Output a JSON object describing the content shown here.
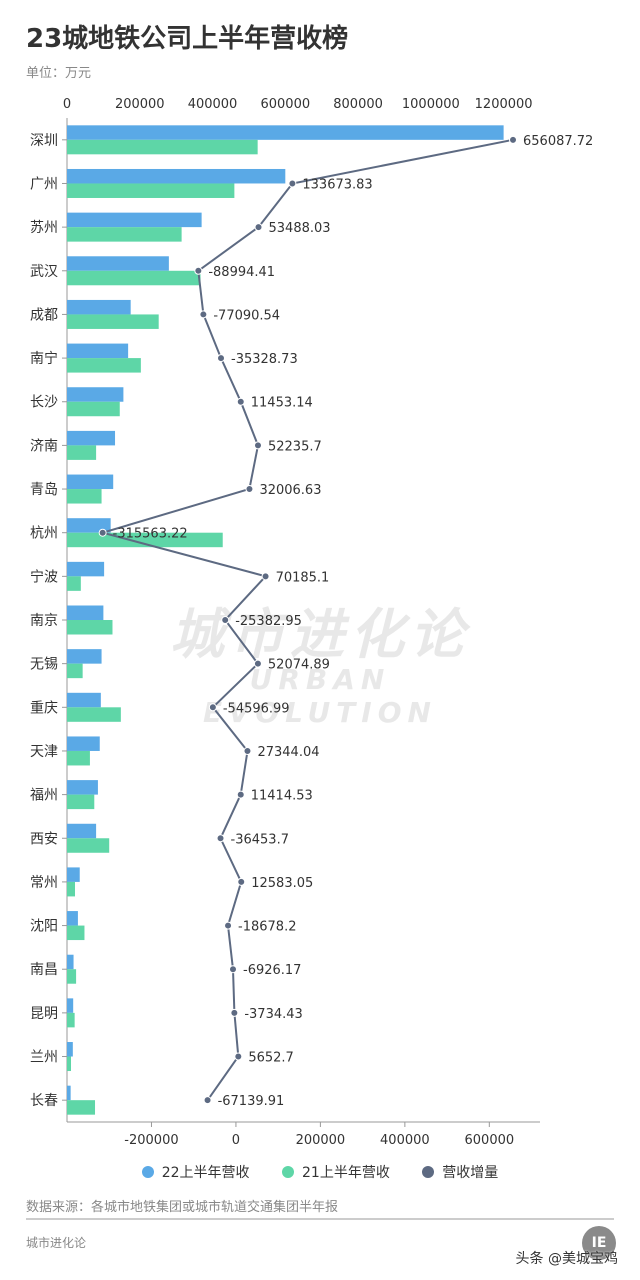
{
  "title": "23城地铁公司上半年营收榜",
  "unit_label": "单位：万元",
  "watermark": {
    "cn": "城市进化论",
    "en": "URBAN EVOLUTION"
  },
  "source": "数据来源：各城市地铁集团或城市轨道交通集团半年报",
  "brand": "城市进化论",
  "logo_text": "IE",
  "credit": "头条 @美城宝鸡",
  "colors": {
    "series_22": "#5aa9e6",
    "series_21": "#5ed6a7",
    "series_growth": "#5d6a82",
    "axis": "#999999",
    "tick_text": "#333333"
  },
  "chart_data": {
    "type": "bar",
    "orientation": "horizontal",
    "categories": [
      "深圳",
      "广州",
      "苏州",
      "武汉",
      "成都",
      "南宁",
      "长沙",
      "济南",
      "青岛",
      "杭州",
      "宁波",
      "南京",
      "无锡",
      "重庆",
      "天津",
      "福州",
      "西安",
      "常州",
      "沈阳",
      "南昌",
      "昆明",
      "兰州",
      "长春"
    ],
    "series": [
      {
        "name": "22上半年营收",
        "axis": "top",
        "values": [
          1200000,
          600000,
          370000,
          280000,
          175000,
          168000,
          155000,
          132000,
          127000,
          120000,
          102000,
          100000,
          95000,
          93000,
          90000,
          85000,
          80000,
          35000,
          30000,
          18000,
          17000,
          16000,
          10000
        ]
      },
      {
        "name": "21上半年营收",
        "axis": "top",
        "values": [
          524000,
          460000,
          315000,
          367000,
          252000,
          203000,
          145000,
          80000,
          95000,
          428000,
          38000,
          125000,
          43000,
          148000,
          63000,
          75000,
          116000,
          22000,
          48000,
          25000,
          21000,
          11000,
          77000
        ]
      },
      {
        "name": "营收增量",
        "axis": "bottom",
        "type": "line",
        "values": [
          656087.72,
          133673.83,
          53488.03,
          -88994.41,
          -77090.54,
          -35328.73,
          11453.14,
          52235.7,
          32006.63,
          -315563.22,
          70185.1,
          -25382.95,
          52074.89,
          -54596.99,
          27344.04,
          11414.53,
          -36453.7,
          12583.05,
          -18678.2,
          -6926.17,
          -3734.43,
          5652.7,
          -67139.91
        ],
        "labels": [
          "656087.72",
          "133673.83",
          "53488.03",
          "-88994.41",
          "-77090.54",
          "-35328.73",
          "11453.14",
          "52235.7",
          "32006.63",
          "-315563.22",
          "70185.1",
          "-25382.95",
          "52074.89",
          "-54596.99",
          "27344.04",
          "11414.53",
          "-36453.7",
          "12583.05",
          "-18678.2",
          "-6926.17",
          "-3734.43",
          "5652.7",
          "-67139.91"
        ]
      }
    ],
    "top_axis": {
      "min": 0,
      "max": 1300000,
      "ticks": [
        0,
        200000,
        400000,
        600000,
        800000,
        1000000,
        1200000
      ]
    },
    "bottom_axis": {
      "min": -400000,
      "max": 720000,
      "ticks": [
        -200000,
        0,
        200000,
        400000,
        600000
      ]
    },
    "legend_position": "bottom",
    "grid": false
  }
}
